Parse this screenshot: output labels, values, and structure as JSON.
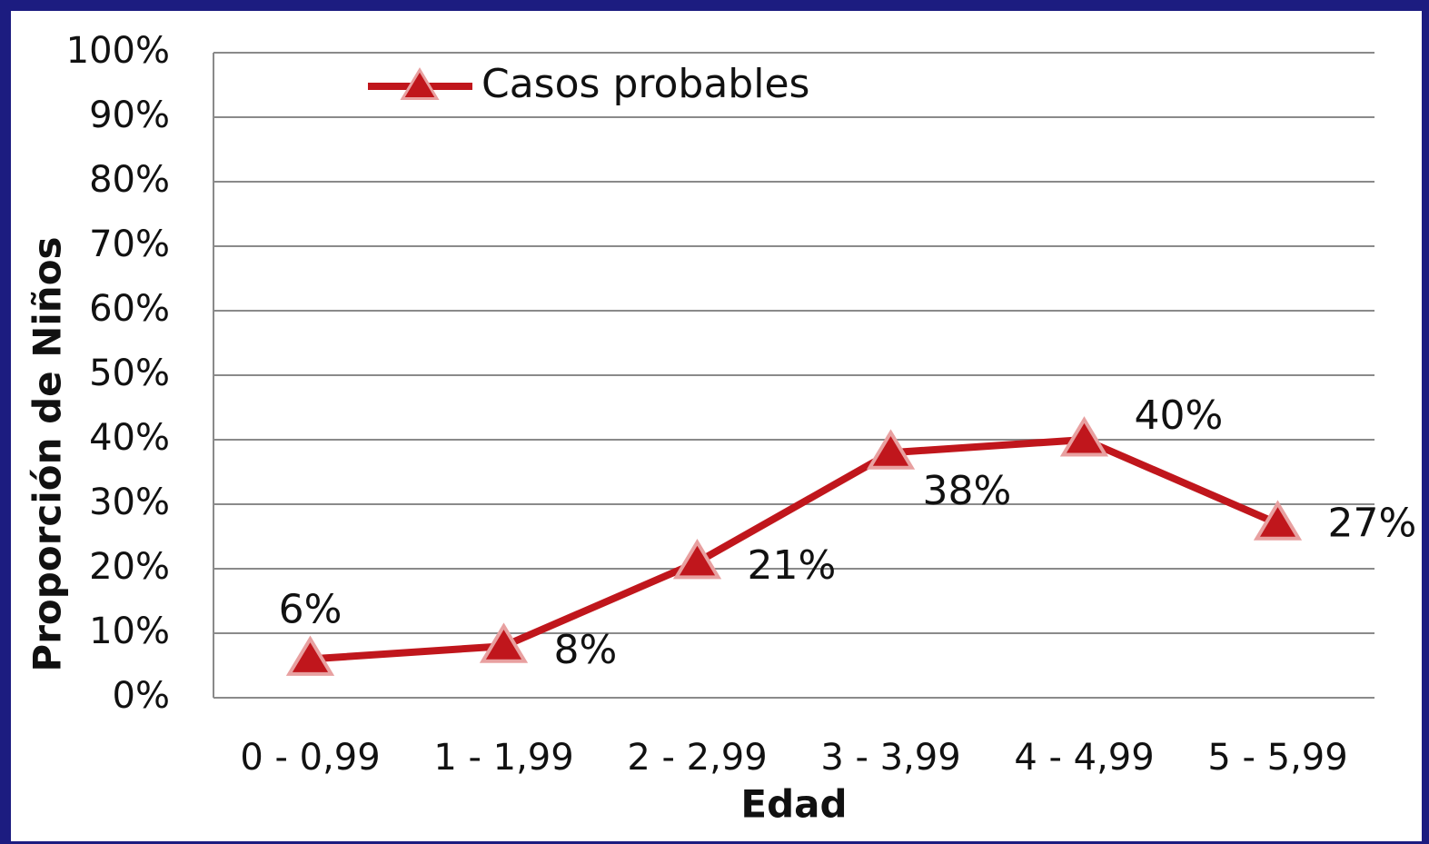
{
  "chart_data": {
    "type": "line",
    "x_label": "Edad",
    "y_label": "Proporción de Niños",
    "categories": [
      "0 - 0,99",
      "1 - 1,99",
      "2 - 2,99",
      "3 - 3,99",
      "4 - 4,99",
      "5 - 5,99"
    ],
    "series": [
      {
        "name": "Casos probables",
        "color": "#c0161c",
        "values": [
          6,
          8,
          21,
          38,
          40,
          27
        ],
        "value_labels": [
          "6%",
          "8%",
          "21%",
          "38%",
          "40%",
          "27%"
        ]
      }
    ],
    "ylim": [
      0,
      100
    ],
    "yticks": [
      {
        "value": 0,
        "label": "0%"
      },
      {
        "value": 10,
        "label": "10%"
      },
      {
        "value": 20,
        "label": "20%"
      },
      {
        "value": 30,
        "label": "30%"
      },
      {
        "value": 40,
        "label": "40%"
      },
      {
        "value": 50,
        "label": "50%"
      },
      {
        "value": 60,
        "label": "60%"
      },
      {
        "value": 70,
        "label": "70%"
      },
      {
        "value": 80,
        "label": "80%"
      },
      {
        "value": 90,
        "label": "90%"
      },
      {
        "value": 100,
        "label": "100%"
      }
    ],
    "grid": true,
    "legend": "top-left"
  }
}
